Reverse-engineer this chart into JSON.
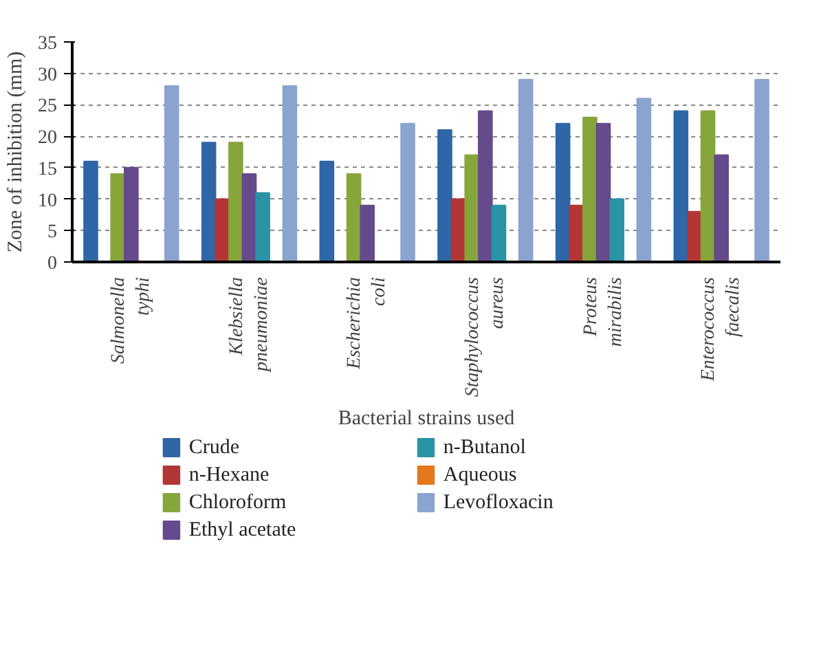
{
  "chart_data": {
    "type": "bar",
    "xlabel": "Bacterial strains used",
    "ylabel": "Zone of inhibition (mm)",
    "categories": [
      "Salmonella\ntyphi",
      "Klebsiella\npneumoniae",
      "Escherichia\ncoli",
      "Staphylococcus\naureus",
      "Proteus\nmirabilis",
      "Enterococcus\nfaecalis"
    ],
    "series": [
      {
        "name": "Crude",
        "color": "#2e66a8",
        "values": [
          16,
          19,
          16,
          21,
          22,
          24
        ]
      },
      {
        "name": "n-Hexane",
        "color": "#b33636",
        "values": [
          null,
          10,
          null,
          10,
          9,
          8
        ]
      },
      {
        "name": "Chloroform",
        "color": "#86a53a",
        "values": [
          14,
          19,
          14,
          17,
          23,
          24
        ]
      },
      {
        "name": "Ethyl acetate",
        "color": "#654a8c",
        "values": [
          15,
          14,
          9,
          24,
          22,
          17
        ]
      },
      {
        "name": "n-Butanol",
        "color": "#2a93a6",
        "values": [
          null,
          11,
          null,
          9,
          10,
          null
        ]
      },
      {
        "name": "Aqueous",
        "color": "#e3781c",
        "values": [
          null,
          null,
          null,
          null,
          null,
          null
        ]
      },
      {
        "name": "Levofloxacin",
        "color": "#8aa4cf",
        "values": [
          28,
          28,
          22,
          29,
          26,
          29
        ]
      }
    ],
    "ylim": [
      0,
      35
    ],
    "yticks": [
      0,
      5,
      10,
      15,
      20,
      25,
      30,
      35
    ],
    "grid": "y",
    "legend": "bottom"
  }
}
